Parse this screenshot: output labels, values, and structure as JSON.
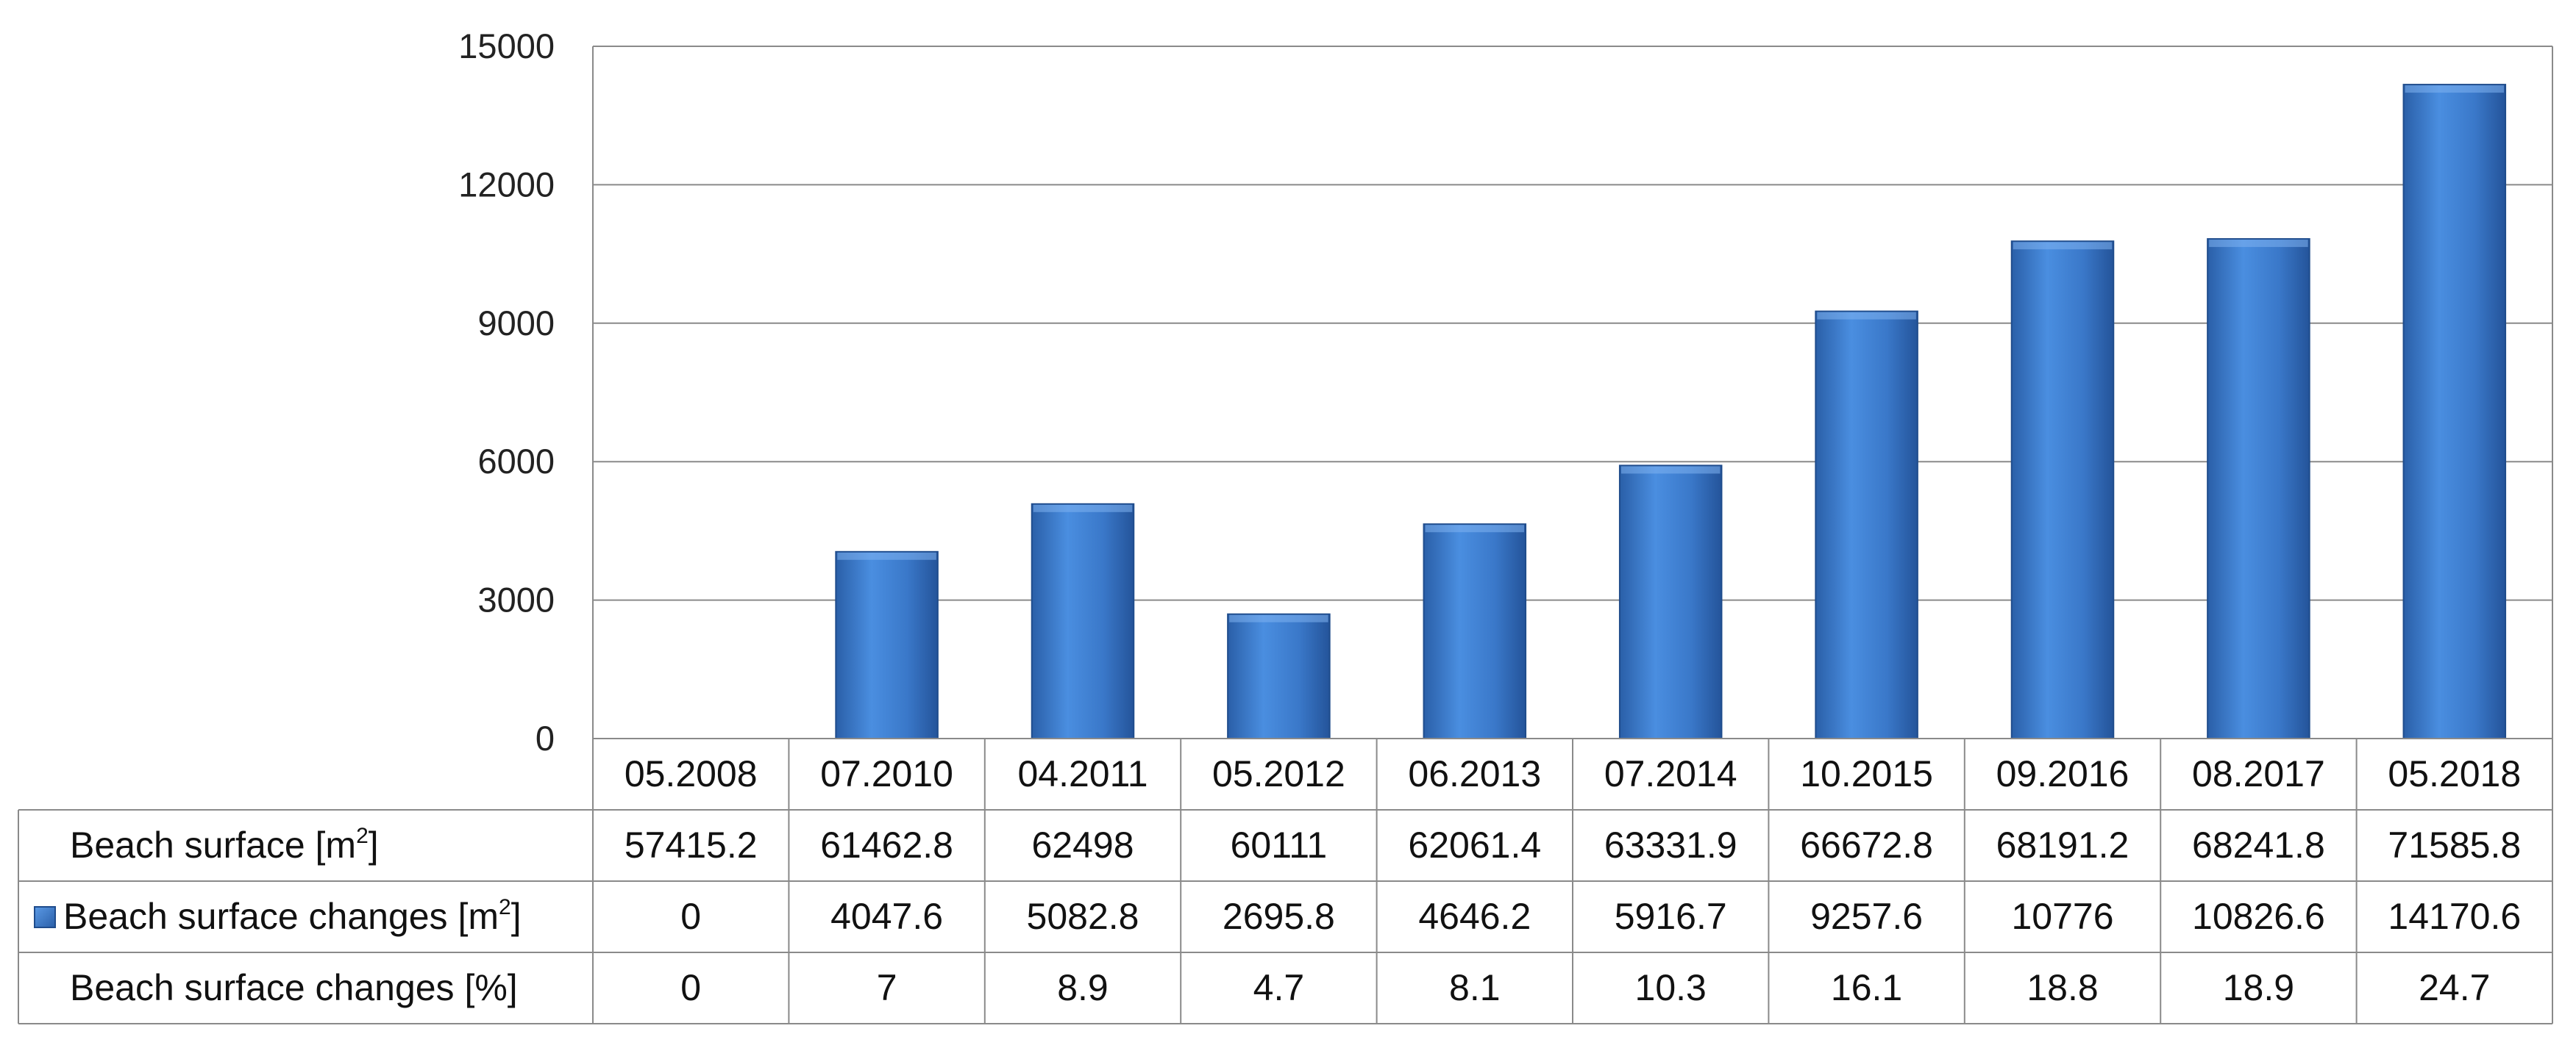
{
  "chart_data": {
    "type": "bar",
    "categories": [
      "05.2008",
      "07.2010",
      "04.2011",
      "05.2012",
      "06.2013",
      "07.2014",
      "10.2015",
      "09.2016",
      "08.2017",
      "05.2018"
    ],
    "series": [
      {
        "name": "Beach surface changes [m2]",
        "values": [
          0,
          4047.6,
          5082.8,
          2695.8,
          4646.2,
          5916.7,
          9257.6,
          10776,
          10826.6,
          14170.6
        ]
      }
    ],
    "ylim": [
      0,
      15000
    ],
    "y_ticks": [
      "0",
      "3000",
      "6000",
      "9000",
      "12000",
      "15000"
    ],
    "gridlines": true,
    "bar_color": "#3a78c9",
    "data_table": {
      "rows": [
        {
          "label": "Beach surface [m",
          "sup": "2",
          "suffix": "]",
          "legend_key": false,
          "values": [
            "57415.2",
            "61462.8",
            "62498",
            "60111",
            "62061.4",
            "63331.9",
            "66672.8",
            "68191.2",
            "68241.8",
            "71585.8"
          ]
        },
        {
          "label": "Beach surface changes [m",
          "sup": "2",
          "suffix": "]",
          "legend_key": true,
          "values": [
            "0",
            "4047.6",
            "5082.8",
            "2695.8",
            "4646.2",
            "5916.7",
            "9257.6",
            "10776",
            "10826.6",
            "14170.6"
          ]
        },
        {
          "label": "Beach surface changes [%]",
          "sup": "",
          "suffix": "",
          "legend_key": false,
          "values": [
            "0",
            "7",
            "8.9",
            "4.7",
            "8.1",
            "10.3",
            "16.1",
            "18.8",
            "18.9",
            "24.7"
          ]
        }
      ]
    }
  }
}
